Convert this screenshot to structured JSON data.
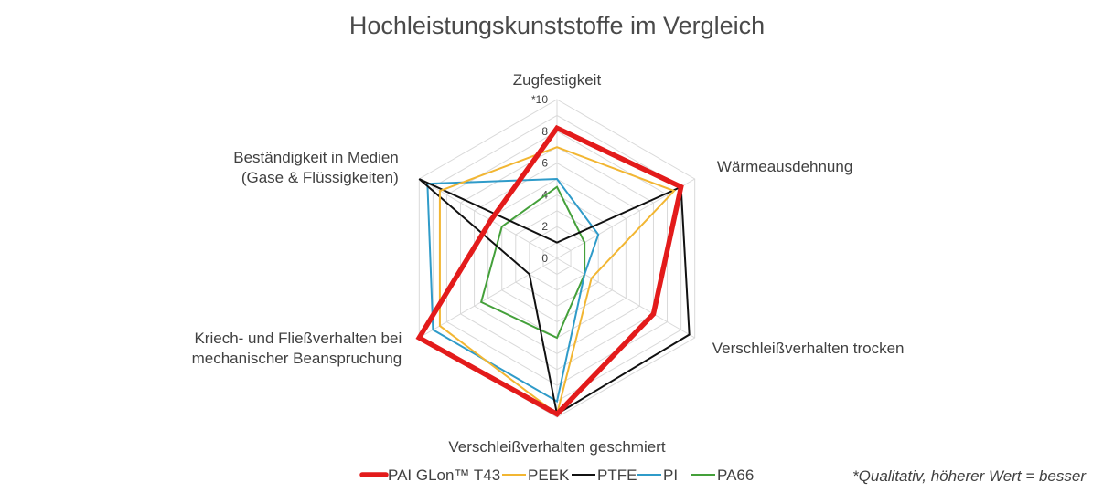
{
  "chart_data": {
    "type": "radar",
    "title": "Hochleistungskunststoffe im Vergleich",
    "axes": [
      [
        "Zugfestigkeit"
      ],
      [
        "Wärmeausdehnung"
      ],
      [
        "Verschleißverhalten trocken"
      ],
      [
        "Verschleißverhalten geschmiert"
      ],
      [
        "Kriech- und Fließverhalten bei",
        "mechanischer Beanspruchung"
      ],
      [
        "Beständigkeit in Medien",
        "(Gase & Flüssigkeiten)"
      ]
    ],
    "rlim": [
      0,
      10
    ],
    "ticks": [
      "0",
      "2",
      "4",
      "6",
      "8",
      "*10"
    ],
    "tick_values": [
      0,
      2,
      4,
      6,
      8,
      10
    ],
    "grid": true,
    "legend_position": "bottom",
    "series": [
      {
        "name": "PAI GLon™ T43",
        "color": "#e31b1b",
        "values": [
          8.2,
          9.0,
          7.0,
          9.8,
          10.0,
          4.8
        ]
      },
      {
        "name": "PEEK",
        "color": "#f2b632",
        "values": [
          7.0,
          8.5,
          2.5,
          9.8,
          8.5,
          8.5
        ]
      },
      {
        "name": "PTFE",
        "color": "#111111",
        "values": [
          1.0,
          9.0,
          9.6,
          9.8,
          2.0,
          10.0
        ]
      },
      {
        "name": "PI",
        "color": "#2f9bc9",
        "values": [
          5.0,
          3.0,
          2.0,
          9.0,
          9.0,
          9.4
        ]
      },
      {
        "name": "PA66",
        "color": "#44a03a",
        "values": [
          4.5,
          2.0,
          2.0,
          5.0,
          5.5,
          4.0
        ]
      }
    ],
    "note": "*Qualitativ, höherer Wert = besser"
  }
}
